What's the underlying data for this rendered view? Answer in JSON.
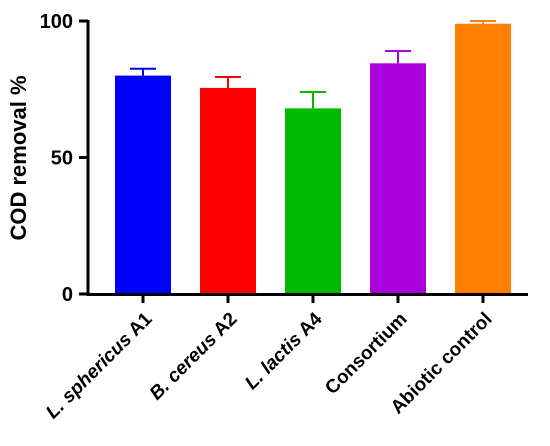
{
  "chart_data": {
    "type": "bar",
    "ylabel": "COD removal %",
    "xlabel": "",
    "ylim": [
      0,
      100
    ],
    "yticks": [
      0,
      50,
      100
    ],
    "grid": false,
    "categories": [
      {
        "parts": [
          {
            "text": "L. ",
            "italic": true
          },
          {
            "text": "sphericus",
            "italic": true
          },
          {
            "text": " A1",
            "italic": false
          }
        ]
      },
      {
        "parts": [
          {
            "text": "B. ",
            "italic": true
          },
          {
            "text": "cereus",
            "italic": true
          },
          {
            "text": " A2",
            "italic": false
          }
        ]
      },
      {
        "parts": [
          {
            "text": "L. ",
            "italic": true
          },
          {
            "text": "lactis",
            "italic": true
          },
          {
            "text": " A4",
            "italic": false
          }
        ]
      },
      {
        "parts": [
          {
            "text": "Consortium",
            "italic": false
          }
        ]
      },
      {
        "parts": [
          {
            "text": "Abiotic control",
            "italic": false
          }
        ]
      }
    ],
    "values": [
      80,
      75.5,
      68,
      84.5,
      99
    ],
    "errors": [
      2.5,
      4,
      6,
      4.5,
      1
    ],
    "colors": [
      "#0000ff",
      "#ff0000",
      "#00bb00",
      "#aa00dd",
      "#ff8000"
    ]
  }
}
